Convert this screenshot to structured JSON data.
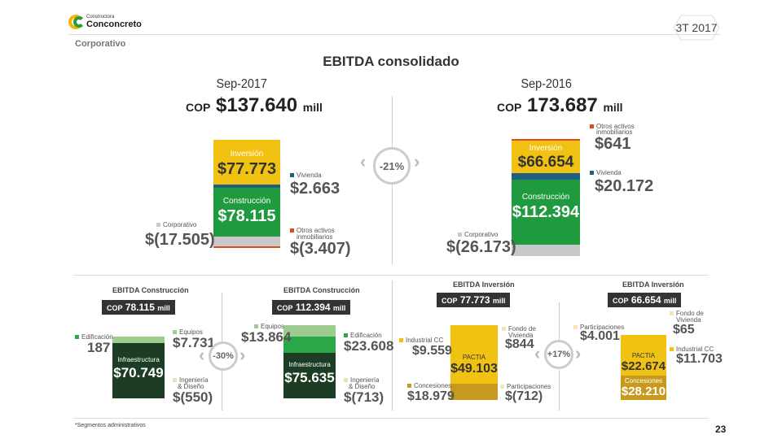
{
  "header": {
    "brand_small": "Constructora",
    "brand_name": "Conconcreto",
    "quarter": "3T 2017",
    "section": "Corporativo",
    "title": "EBITDA consolidado",
    "footnote": "*Segmentos administrativos",
    "page_number": "23"
  },
  "colors": {
    "inversion": "#f2c212",
    "construccion": "#1f9a3f",
    "vivienda": "#1e5f86",
    "otros_activos": "#e04a1f",
    "corporativo": "#c9c9c9",
    "infraestructura": "#1c3d23",
    "equipos": "#9ccc90",
    "edificacion": "#2ba84a",
    "pactia": "#f0c313",
    "concesiones": "#c79a1d",
    "dark_pill": "#333333"
  },
  "top_left": {
    "period": "Sep-2017",
    "cop": "COP",
    "total": "$137.640",
    "mill": "mill",
    "inversion_label": "Inversión",
    "inversion_value": "$77.773",
    "construccion_label": "Construcción",
    "construccion_value": "$78.115",
    "vivienda_label": "Vivienda",
    "vivienda_value": "$2.663",
    "corporativo_label": "Corporativo",
    "corporativo_value": "$(17.505)",
    "otros_label_1": "Otros activos",
    "otros_label_2": "inmobiliarios",
    "otros_value": "$(3.407)"
  },
  "change_top": "-21%",
  "top_right": {
    "period": "Sep-2016",
    "cop": "COP",
    "total": "173.687",
    "mill": "mill",
    "inversion_label": "Inversión",
    "inversion_value": "$66.654",
    "construccion_label": "Construcción",
    "construccion_value": "$112.394",
    "vivienda_label": "Vivienda",
    "vivienda_value": "$20.172",
    "corporativo_label": "Corporativo",
    "corporativo_value": "$(26.173)",
    "otros_label_1": "Otros activos",
    "otros_label_2": "inmobiliarios",
    "otros_value": "$641"
  },
  "bottom_construccion": {
    "change": "-30%",
    "left": {
      "title": "EBITDA Construcción",
      "pill_cop": "COP",
      "pill_value": "78.115",
      "pill_mill": "mill",
      "edificacion_label": "Edificación",
      "edificacion_value": "187",
      "equipos_label": "Equipos",
      "equipos_value": "$7.731",
      "infra_label": "Infraestructura",
      "infra_value": "$70.749",
      "ingenieria_label_1": "Ingeniería",
      "ingenieria_label_2": "& Diseño",
      "ingenieria_value": "$(550)"
    },
    "right": {
      "title": "EBITDA Construcción",
      "pill_cop": "COP",
      "pill_value": "112.394",
      "pill_mill": "mill",
      "equipos_label": "Equipos",
      "equipos_value": "$13.864",
      "edificacion_label": "Edificación",
      "edificacion_value": "$23.608",
      "infra_label": "Infraestructura",
      "infra_value": "$75.635",
      "ingenieria_label_1": "Ingeniería",
      "ingenieria_label_2": "& Diseño",
      "ingenieria_value": "$(713)"
    }
  },
  "bottom_inversion": {
    "change": "+17%",
    "left": {
      "title": "EBITDA Inversión",
      "pill_cop": "COP",
      "pill_value": "77.773",
      "pill_mill": "mill",
      "industrial_label": "Industrial CC",
      "industrial_value": "$9.559",
      "fondo_label_1": "Fondo de",
      "fondo_label_2": "Vivienda",
      "fondo_value": "$844",
      "pactia_label": "PACTIA",
      "pactia_value": "$49.103",
      "concesiones_label": "Concesiones",
      "concesiones_value": "$18.979",
      "participaciones_label": "Participaciones",
      "participaciones_value": "$(712)"
    },
    "right": {
      "title": "EBITDA Inversión",
      "pill_cop": "COP",
      "pill_value": "66.654",
      "pill_mill": "mill",
      "participaciones_label": "Participaciones",
      "participaciones_value": "$4.001",
      "fondo_label_1": "Fondo de",
      "fondo_label_2": "Vivienda",
      "fondo_value": "$65",
      "industrial_label": "Industrial CC",
      "industrial_value": "$11.703",
      "pactia_label": "PACTIA",
      "pactia_value": "$22.674",
      "concesiones_label": "Concesiones",
      "concesiones_value": "$28.210"
    }
  },
  "chart_data": [
    {
      "type": "bar",
      "categories": [
        "Inversión",
        "Vivienda",
        "Construcción",
        "Otros activos inmobiliarios",
        "Corporativo"
      ],
      "values": [
        77773,
        2663,
        78115,
        -3407,
        -17505
      ],
      "title": "Sep-2017"
    },
    {
      "type": "bar",
      "categories": [
        "Otros activos inmobiliarios",
        "Inversión",
        "Vivienda",
        "Construcción",
        "Corporativo"
      ],
      "values": [
        641,
        66654,
        20172,
        112394,
        -26173
      ],
      "title": "Sep-2016"
    },
    {
      "type": "bar",
      "categories": [
        "Edificación",
        "Equipos",
        "Infraestructura",
        "Ingeniería & Diseño"
      ],
      "values": [
        187,
        7731,
        70749,
        -550
      ],
      "title": "EBITDA Construcción"
    },
    {
      "type": "bar",
      "categories": [
        "Equipos",
        "Edificación",
        "Infraestructura",
        "Ingeniería & Diseño"
      ],
      "values": [
        13864,
        23608,
        75635,
        -713
      ],
      "title": "EBITDA Construcción"
    },
    {
      "type": "bar",
      "categories": [
        "Industrial CC",
        "Fondo de Vivienda",
        "PACTIA",
        "Concesiones",
        "Participaciones"
      ],
      "values": [
        9559,
        844,
        49103,
        18979,
        -712
      ],
      "title": "EBITDA Inversión"
    },
    {
      "type": "bar",
      "categories": [
        "Participaciones",
        "Fondo de Vivienda",
        "Industrial CC",
        "PACTIA",
        "Concesiones"
      ],
      "values": [
        4001,
        65,
        11703,
        22674,
        28210
      ],
      "title": "EBITDA Inversión"
    }
  ]
}
